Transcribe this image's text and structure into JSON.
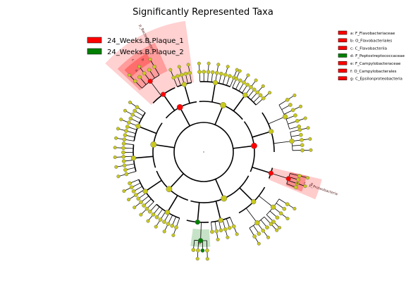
{
  "chart_data": {
    "type": "cladogram",
    "title": "Significantly Represented Taxa",
    "groups": [
      {
        "name": "24_Weeks.B.Plaque_1",
        "color": "#ff0000"
      },
      {
        "name": "24_Weeks.B.Plaque_2",
        "color": "#008000"
      }
    ],
    "clade_key": [
      {
        "letter": "a",
        "taxon": "F_Flavobacteriaceae",
        "group": "24_Weeks.B.Plaque_1",
        "color": "#ff0000"
      },
      {
        "letter": "b",
        "taxon": "O_Flavobacteriales",
        "group": "24_Weeks.B.Plaque_1",
        "color": "#ff0000"
      },
      {
        "letter": "c",
        "taxon": "C_Flavobacteriia",
        "group": "24_Weeks.B.Plaque_1",
        "color": "#ff0000"
      },
      {
        "letter": "d",
        "taxon": "F_Peptostreptococcaceae",
        "group": "24_Weeks.B.Plaque_2",
        "color": "#008000"
      },
      {
        "letter": "e",
        "taxon": "F_Campylobacteraceae",
        "group": "24_Weeks.B.Plaque_1",
        "color": "#ff0000"
      },
      {
        "letter": "f",
        "taxon": "O_Campylobacterales",
        "group": "24_Weeks.B.Plaque_1",
        "color": "#ff0000"
      },
      {
        "letter": "g",
        "taxon": "C_Epsilonproteobacteria",
        "group": "24_Weeks.B.Plaque_1",
        "color": "#ff0000"
      }
    ],
    "highlighted_phyla": [
      {
        "label": "p_Bacteroidetes",
        "group": "24_Weeks.B.Plaque_1"
      },
      {
        "label": "p_Proteobacteria",
        "group": "24_Weeks.B.Plaque_1"
      }
    ],
    "node_colors": {
      "nonsignificant": "#c8c81e",
      "plaque_1": "#ff0000",
      "plaque_2": "#008000"
    }
  }
}
